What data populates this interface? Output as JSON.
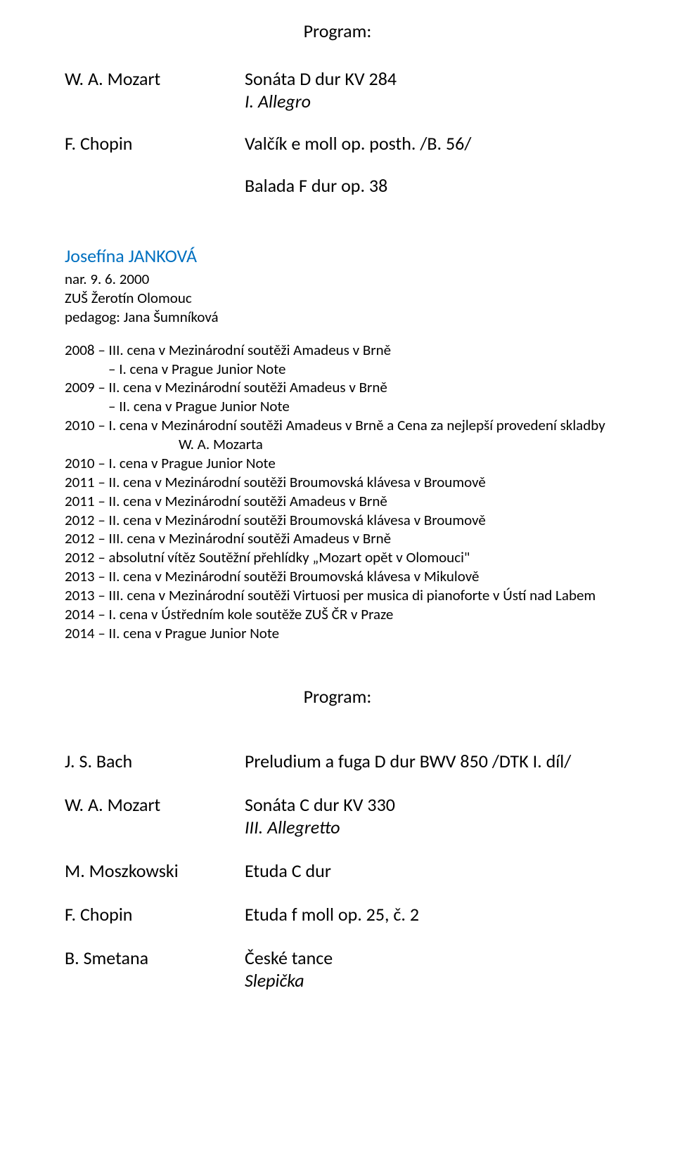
{
  "colors": {
    "text": "#000000",
    "link": "#0070c0",
    "background": "#ffffff"
  },
  "headings": {
    "program1": "Program:",
    "program2": "Program:"
  },
  "section1": {
    "pieces": [
      {
        "composer": "W. A. Mozart",
        "title": "Sonáta D dur KV 284",
        "movement": "I. Allegro"
      },
      {
        "composer": "F. Chopin",
        "title": "Valčík e moll op. posth. /B. 56/"
      }
    ],
    "extra": "Balada F dur op. 38"
  },
  "performer": {
    "name": "Josefína JANKOVÁ",
    "bio": [
      "nar. 9. 6. 2000",
      "ZUŠ Žerotín Olomouc",
      "pedagog: Jana Šumníková"
    ]
  },
  "achievements": [
    {
      "text": "2008 – III. cena v Mezinárodní soutěži Amadeus v Brně"
    },
    {
      "text": "– I. cena v Prague Junior Note",
      "indent": "indent-line"
    },
    {
      "text": "2009 – II. cena v Mezinárodní soutěži Amadeus v Brně"
    },
    {
      "text": "– II. cena v Prague Junior Note",
      "indent": "indent-line"
    },
    {
      "text": "2010 – I. cena v Mezinárodní soutěži Amadeus v Brně a Cena za nejlepší provedení skladby"
    },
    {
      "text": "W. A. Mozarta",
      "indent": "indent-center"
    },
    {
      "text": "2010 – I. cena v Prague Junior Note"
    },
    {
      "text": "2011 – II. cena v Mezinárodní soutěži Broumovská klávesa v Broumově"
    },
    {
      "text": "2011 – II. cena v Mezinárodní soutěži Amadeus v Brně"
    },
    {
      "text": "2012 – II. cena v Mezinárodní soutěži Broumovská klávesa v Broumově"
    },
    {
      "text": "2012 – III. cena v Mezinárodní soutěži Amadeus v Brně"
    },
    {
      "text": "2012 – absolutní vítěz Soutěžní přehlídky „Mozart opět v Olomouci\""
    },
    {
      "text": "2013 – II. cena v Mezinárodní soutěži Broumovská klávesa v Mikulově"
    },
    {
      "text": "2013 – III. cena v Mezinárodní soutěži Virtuosi per musica di pianoforte v Ústí nad Labem"
    },
    {
      "text": "2014 – I. cena v Ústředním kole soutěže ZUŠ ČR v Praze"
    },
    {
      "text": "2014 – II. cena v Prague Junior Note"
    }
  ],
  "section2": {
    "pieces": [
      {
        "composer": "J. S. Bach",
        "title": "Preludium a fuga D dur BWV 850 /DTK I. díl/"
      },
      {
        "composer": "W. A. Mozart",
        "title": "Sonáta C dur KV 330",
        "movement": "III. Allegretto"
      },
      {
        "composer": "M. Moszkowski",
        "title": "Etuda C dur"
      },
      {
        "composer": "F. Chopin",
        "title": "Etuda f moll op. 25, č. 2"
      },
      {
        "composer": "B. Smetana",
        "title": "České tance",
        "movement": "Slepička"
      }
    ]
  }
}
